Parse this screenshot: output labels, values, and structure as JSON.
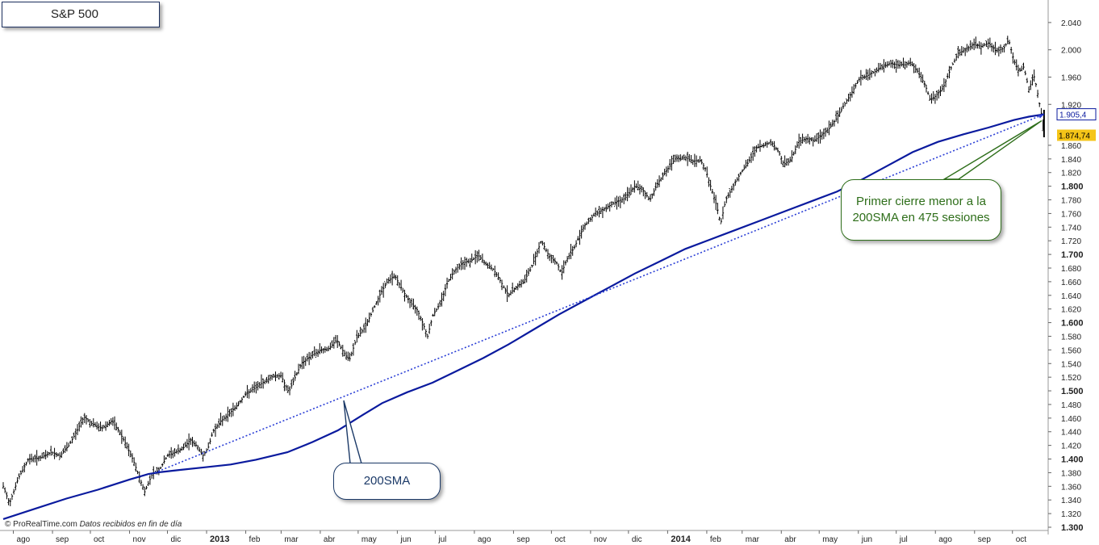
{
  "title": "S&P 500",
  "footer": {
    "source": "© ProRealTime.com",
    "note": "Datos recibidos en fin de día"
  },
  "colors": {
    "price": "#000000",
    "sma": "#0a1a9e",
    "trendline": "#2b3fd6",
    "last_price_badge": "#f5c518",
    "sma_badge_border": "#0a1a9e",
    "annotation_sma": "#1c3a68",
    "annotation_first": "#2e6e1a"
  },
  "annotations": {
    "sma_label": "200SMA",
    "first_close": "Primer cierre menor a la 200SMA en 475 sesiones"
  },
  "chart_data": {
    "type": "line",
    "title": "S&P 500",
    "xlabel": "",
    "ylabel": "",
    "ylim": [
      1300,
      2060
    ],
    "grid": false,
    "x_axis": {
      "ticks": [
        {
          "label": "ago",
          "bold": false,
          "day": 8
        },
        {
          "label": "sep",
          "bold": false,
          "day": 39
        },
        {
          "label": "oct",
          "bold": false,
          "day": 69
        },
        {
          "label": "nov",
          "bold": false,
          "day": 100
        },
        {
          "label": "dic",
          "bold": false,
          "day": 130
        },
        {
          "label": "2013",
          "bold": true,
          "day": 161
        },
        {
          "label": "feb",
          "bold": false,
          "day": 192
        },
        {
          "label": "mar",
          "bold": false,
          "day": 220
        },
        {
          "label": "abr",
          "bold": false,
          "day": 251
        },
        {
          "label": "may",
          "bold": false,
          "day": 281
        },
        {
          "label": "jun",
          "bold": false,
          "day": 312
        },
        {
          "label": "jul",
          "bold": false,
          "day": 342
        },
        {
          "label": "ago",
          "bold": false,
          "day": 373
        },
        {
          "label": "sep",
          "bold": false,
          "day": 404
        },
        {
          "label": "oct",
          "bold": false,
          "day": 434
        },
        {
          "label": "nov",
          "bold": false,
          "day": 465
        },
        {
          "label": "dic",
          "bold": false,
          "day": 495
        },
        {
          "label": "2014",
          "bold": true,
          "day": 526
        },
        {
          "label": "feb",
          "bold": false,
          "day": 557
        },
        {
          "label": "mar",
          "bold": false,
          "day": 585
        },
        {
          "label": "abr",
          "bold": false,
          "day": 616
        },
        {
          "label": "may",
          "bold": false,
          "day": 646
        },
        {
          "label": "jun",
          "bold": false,
          "day": 677
        },
        {
          "label": "jul",
          "bold": false,
          "day": 707
        },
        {
          "label": "ago",
          "bold": false,
          "day": 738
        },
        {
          "label": "sep",
          "bold": false,
          "day": 769
        },
        {
          "label": "oct",
          "bold": false,
          "day": 799
        }
      ],
      "range_days": [
        0,
        826
      ]
    },
    "y_axis": {
      "ticks": [
        {
          "value": 1300,
          "label": "1.300",
          "bold": true
        },
        {
          "value": 1320,
          "label": "1.320",
          "bold": false
        },
        {
          "value": 1340,
          "label": "1.340",
          "bold": false
        },
        {
          "value": 1360,
          "label": "1.360",
          "bold": false
        },
        {
          "value": 1380,
          "label": "1.380",
          "bold": false
        },
        {
          "value": 1400,
          "label": "1.400",
          "bold": true
        },
        {
          "value": 1420,
          "label": "1.420",
          "bold": false
        },
        {
          "value": 1440,
          "label": "1.440",
          "bold": false
        },
        {
          "value": 1460,
          "label": "1.460",
          "bold": false
        },
        {
          "value": 1480,
          "label": "1.480",
          "bold": false
        },
        {
          "value": 1500,
          "label": "1.500",
          "bold": true
        },
        {
          "value": 1520,
          "label": "1.520",
          "bold": false
        },
        {
          "value": 1540,
          "label": "1.540",
          "bold": false
        },
        {
          "value": 1560,
          "label": "1.560",
          "bold": false
        },
        {
          "value": 1580,
          "label": "1.580",
          "bold": false
        },
        {
          "value": 1600,
          "label": "1.600",
          "bold": true
        },
        {
          "value": 1620,
          "label": "1.620",
          "bold": false
        },
        {
          "value": 1640,
          "label": "1.640",
          "bold": false
        },
        {
          "value": 1660,
          "label": "1.660",
          "bold": false
        },
        {
          "value": 1680,
          "label": "1.680",
          "bold": false
        },
        {
          "value": 1700,
          "label": "1.700",
          "bold": true
        },
        {
          "value": 1720,
          "label": "1.720",
          "bold": false
        },
        {
          "value": 1740,
          "label": "1.740",
          "bold": false
        },
        {
          "value": 1760,
          "label": "1.760",
          "bold": false
        },
        {
          "value": 1780,
          "label": "1.780",
          "bold": false
        },
        {
          "value": 1800,
          "label": "1.800",
          "bold": true
        },
        {
          "value": 1820,
          "label": "1.820",
          "bold": false
        },
        {
          "value": 1840,
          "label": "1.840",
          "bold": false
        },
        {
          "value": 1860,
          "label": "1.860",
          "bold": false
        },
        {
          "value": 1920,
          "label": "1.920",
          "bold": false
        },
        {
          "value": 1960,
          "label": "1.960",
          "bold": false
        },
        {
          "value": 2000,
          "label": "2.000",
          "bold": false
        },
        {
          "value": 2040,
          "label": "2.040",
          "bold": false
        }
      ]
    },
    "last_price": {
      "value": 1874.74,
      "label": "1.874,74"
    },
    "sma_value": {
      "value": 1905.4,
      "label": "1.905,4"
    },
    "price_series": {
      "name": "",
      "points": [
        [
          0,
          1360
        ],
        [
          5,
          1335
        ],
        [
          12,
          1372
        ],
        [
          20,
          1400
        ],
        [
          30,
          1402
        ],
        [
          38,
          1410
        ],
        [
          45,
          1405
        ],
        [
          52,
          1420
        ],
        [
          58,
          1440
        ],
        [
          64,
          1462
        ],
        [
          70,
          1452
        ],
        [
          78,
          1445
        ],
        [
          86,
          1456
        ],
        [
          92,
          1440
        ],
        [
          98,
          1418
        ],
        [
          103,
          1398
        ],
        [
          108,
          1372
        ],
        [
          112,
          1352
        ],
        [
          118,
          1378
        ],
        [
          124,
          1385
        ],
        [
          130,
          1405
        ],
        [
          136,
          1410
        ],
        [
          142,
          1415
        ],
        [
          148,
          1428
        ],
        [
          154,
          1418
        ],
        [
          158,
          1405
        ],
        [
          162,
          1415
        ],
        [
          166,
          1440
        ],
        [
          172,
          1455
        ],
        [
          178,
          1465
        ],
        [
          185,
          1478
        ],
        [
          192,
          1495
        ],
        [
          200,
          1505
        ],
        [
          208,
          1515
        ],
        [
          214,
          1522
        ],
        [
          220,
          1522
        ],
        [
          226,
          1498
        ],
        [
          230,
          1515
        ],
        [
          236,
          1540
        ],
        [
          244,
          1552
        ],
        [
          252,
          1560
        ],
        [
          258,
          1562
        ],
        [
          264,
          1575
        ],
        [
          270,
          1555
        ],
        [
          274,
          1545
        ],
        [
          280,
          1578
        ],
        [
          286,
          1592
        ],
        [
          292,
          1615
        ],
        [
          298,
          1640
        ],
        [
          304,
          1660
        ],
        [
          310,
          1669
        ],
        [
          316,
          1648
        ],
        [
          322,
          1630
        ],
        [
          328,
          1618
        ],
        [
          332,
          1600
        ],
        [
          336,
          1580
        ],
        [
          340,
          1610
        ],
        [
          346,
          1628
        ],
        [
          352,
          1660
        ],
        [
          358,
          1678
        ],
        [
          364,
          1688
        ],
        [
          370,
          1690
        ],
        [
          376,
          1699
        ],
        [
          382,
          1686
        ],
        [
          388,
          1678
        ],
        [
          394,
          1660
        ],
        [
          400,
          1640
        ],
        [
          406,
          1652
        ],
        [
          412,
          1660
        ],
        [
          418,
          1680
        ],
        [
          422,
          1700
        ],
        [
          426,
          1720
        ],
        [
          432,
          1698
        ],
        [
          438,
          1688
        ],
        [
          442,
          1672
        ],
        [
          446,
          1692
        ],
        [
          452,
          1710
        ],
        [
          460,
          1742
        ],
        [
          468,
          1758
        ],
        [
          476,
          1767
        ],
        [
          484,
          1776
        ],
        [
          492,
          1782
        ],
        [
          500,
          1800
        ],
        [
          506,
          1795
        ],
        [
          512,
          1780
        ],
        [
          518,
          1804
        ],
        [
          524,
          1820
        ],
        [
          532,
          1840
        ],
        [
          540,
          1842
        ],
        [
          546,
          1837
        ],
        [
          552,
          1838
        ],
        [
          556,
          1825
        ],
        [
          560,
          1800
        ],
        [
          565,
          1770
        ],
        [
          568,
          1745
        ],
        [
          572,
          1780
        ],
        [
          578,
          1800
        ],
        [
          584,
          1820
        ],
        [
          590,
          1835
        ],
        [
          596,
          1856
        ],
        [
          602,
          1860
        ],
        [
          608,
          1865
        ],
        [
          614,
          1850
        ],
        [
          618,
          1832
        ],
        [
          624,
          1840
        ],
        [
          630,
          1866
        ],
        [
          636,
          1870
        ],
        [
          642,
          1867
        ],
        [
          648,
          1875
        ],
        [
          654,
          1885
        ],
        [
          660,
          1900
        ],
        [
          666,
          1920
        ],
        [
          672,
          1938
        ],
        [
          678,
          1958
        ],
        [
          684,
          1962
        ],
        [
          690,
          1968
        ],
        [
          696,
          1975
        ],
        [
          702,
          1980
        ],
        [
          708,
          1978
        ],
        [
          714,
          1978
        ],
        [
          718,
          1982
        ],
        [
          724,
          1968
        ],
        [
          730,
          1948
        ],
        [
          734,
          1926
        ],
        [
          738,
          1932
        ],
        [
          744,
          1944
        ],
        [
          750,
          1972
        ],
        [
          756,
          1995
        ],
        [
          762,
          2000
        ],
        [
          768,
          2008
        ],
        [
          774,
          2005
        ],
        [
          780,
          2010
        ],
        [
          786,
          1998
        ],
        [
          792,
          2002
        ],
        [
          796,
          2015
        ],
        [
          800,
          1985
        ],
        [
          804,
          1968
        ],
        [
          808,
          1975
        ],
        [
          812,
          1942
        ],
        [
          816,
          1962
        ],
        [
          818,
          1946
        ],
        [
          820,
          1925
        ],
        [
          822,
          1905
        ],
        [
          824,
          1874.74
        ]
      ]
    },
    "sma_series": {
      "name": "200SMA",
      "points": [
        [
          0,
          1312
        ],
        [
          25,
          1327
        ],
        [
          50,
          1342
        ],
        [
          75,
          1355
        ],
        [
          100,
          1370
        ],
        [
          115,
          1378
        ],
        [
          125,
          1381
        ],
        [
          140,
          1384
        ],
        [
          160,
          1388
        ],
        [
          180,
          1392
        ],
        [
          200,
          1399
        ],
        [
          225,
          1410
        ],
        [
          245,
          1425
        ],
        [
          265,
          1442
        ],
        [
          285,
          1465
        ],
        [
          300,
          1482
        ],
        [
          320,
          1498
        ],
        [
          340,
          1512
        ],
        [
          360,
          1530
        ],
        [
          380,
          1548
        ],
        [
          400,
          1568
        ],
        [
          420,
          1590
        ],
        [
          440,
          1612
        ],
        [
          460,
          1632
        ],
        [
          480,
          1652
        ],
        [
          500,
          1672
        ],
        [
          520,
          1690
        ],
        [
          540,
          1708
        ],
        [
          560,
          1722
        ],
        [
          580,
          1736
        ],
        [
          600,
          1750
        ],
        [
          620,
          1764
        ],
        [
          640,
          1778
        ],
        [
          660,
          1792
        ],
        [
          680,
          1810
        ],
        [
          700,
          1830
        ],
        [
          720,
          1850
        ],
        [
          740,
          1865
        ],
        [
          760,
          1876
        ],
        [
          780,
          1886
        ],
        [
          800,
          1897
        ],
        [
          812,
          1902
        ],
        [
          824,
          1905.4
        ]
      ]
    },
    "trendline": {
      "points": [
        [
          120,
          1380
        ],
        [
          824,
          1905.4
        ]
      ]
    }
  }
}
